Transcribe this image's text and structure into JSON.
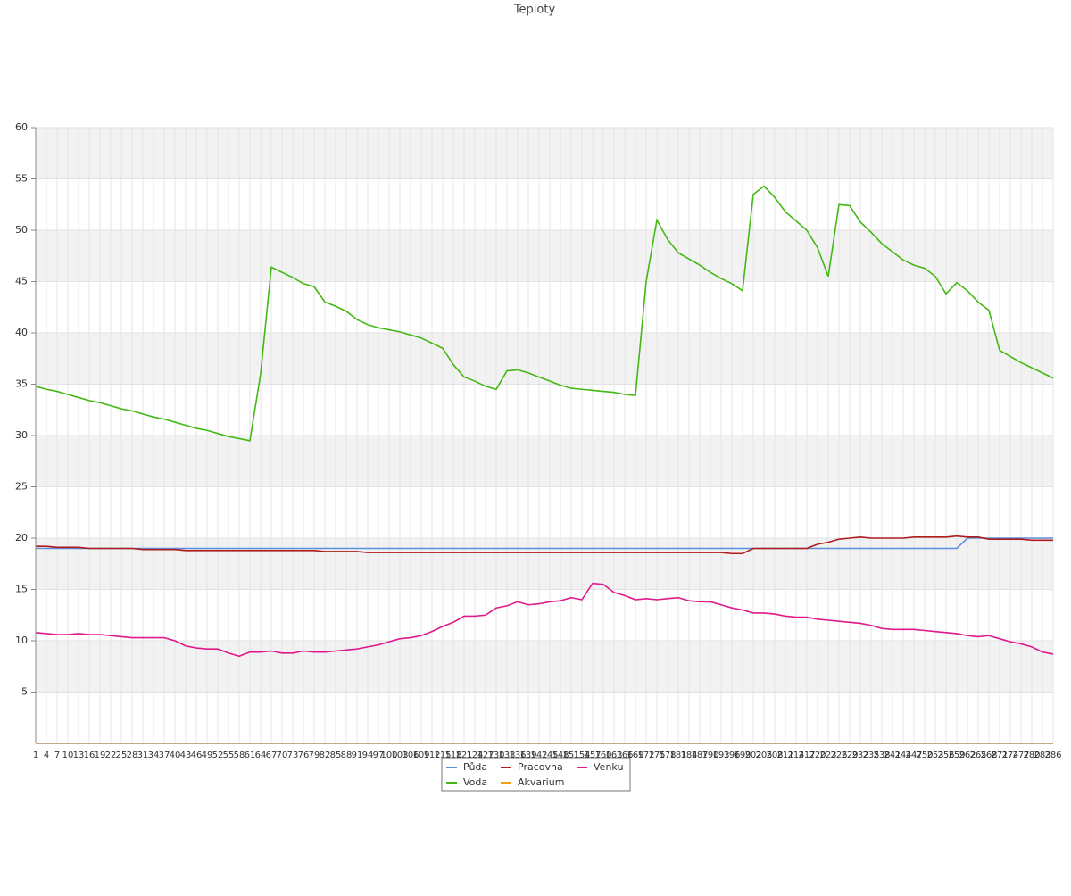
{
  "chart_data": {
    "type": "line",
    "title": "Teploty",
    "categories": [
      "1",
      "4",
      "7",
      "10",
      "13",
      "16",
      "19",
      "22",
      "25",
      "28",
      "31",
      "34",
      "37",
      "40",
      "43",
      "46",
      "49",
      "52",
      "55",
      "58",
      "61",
      "64",
      "67",
      "70",
      "73",
      "76",
      "79",
      "82",
      "85",
      "88",
      "91",
      "94",
      "97",
      "100",
      "103",
      "106",
      "109",
      "112",
      "115",
      "118",
      "121",
      "124",
      "127",
      "130",
      "133",
      "136",
      "139",
      "142",
      "145",
      "148",
      "151",
      "154",
      "157",
      "160",
      "163",
      "166",
      "169",
      "172",
      "175",
      "178",
      "181",
      "184",
      "187",
      "190",
      "193",
      "196",
      "199",
      "202",
      "205",
      "208",
      "211",
      "214",
      "217",
      "220",
      "223",
      "226",
      "229",
      "232",
      "235",
      "238",
      "241",
      "244",
      "247",
      "250",
      "253",
      "256",
      "259",
      "262",
      "265",
      "268",
      "271",
      "274",
      "277",
      "280",
      "283",
      "286"
    ],
    "series": [
      {
        "name": "Půda",
        "color": "#5b8fde",
        "values": [
          19,
          19,
          19,
          19,
          19,
          19,
          19,
          19,
          19,
          19,
          19,
          19,
          19,
          19,
          19,
          19,
          19,
          19,
          19,
          19,
          19,
          19,
          19,
          19,
          19,
          19,
          19,
          19,
          19,
          19,
          19,
          19,
          19,
          19,
          19,
          19,
          19,
          19,
          19,
          19,
          19,
          19,
          19,
          19,
          19,
          19,
          19,
          19,
          19,
          19,
          19,
          19,
          19,
          19,
          19,
          19,
          19,
          19,
          19,
          19,
          19,
          19,
          19,
          19,
          19,
          19,
          19,
          19,
          19,
          19,
          19,
          19,
          19,
          19,
          19,
          19,
          19,
          19,
          19,
          19,
          19,
          19,
          19,
          19,
          19,
          19,
          19,
          20,
          20,
          20,
          20,
          20,
          20,
          20,
          20,
          20
        ]
      },
      {
        "name": "Pracovna",
        "color": "#b01c1c",
        "values": [
          19.2,
          19.2,
          19.1,
          19.1,
          19.1,
          19.0,
          19.0,
          19.0,
          19.0,
          19.0,
          18.9,
          18.9,
          18.9,
          18.9,
          18.8,
          18.8,
          18.8,
          18.8,
          18.8,
          18.8,
          18.8,
          18.8,
          18.8,
          18.8,
          18.8,
          18.8,
          18.8,
          18.7,
          18.7,
          18.7,
          18.7,
          18.6,
          18.6,
          18.6,
          18.6,
          18.6,
          18.6,
          18.6,
          18.6,
          18.6,
          18.6,
          18.6,
          18.6,
          18.6,
          18.6,
          18.6,
          18.6,
          18.6,
          18.6,
          18.6,
          18.6,
          18.6,
          18.6,
          18.6,
          18.6,
          18.6,
          18.6,
          18.6,
          18.6,
          18.6,
          18.6,
          18.6,
          18.6,
          18.6,
          18.6,
          18.5,
          18.5,
          19.0,
          19.0,
          19.0,
          19.0,
          19.0,
          19.0,
          19.4,
          19.6,
          19.9,
          20.0,
          20.1,
          20.0,
          20.0,
          20.0,
          20.0,
          20.1,
          20.1,
          20.1,
          20.1,
          20.2,
          20.1,
          20.1,
          19.9,
          19.9,
          19.9,
          19.9,
          19.8,
          19.8,
          19.8
        ]
      },
      {
        "name": "Venku",
        "color": "#e0198c",
        "values": [
          10.8,
          10.7,
          10.6,
          10.6,
          10.7,
          10.6,
          10.6,
          10.5,
          10.4,
          10.3,
          10.3,
          10.3,
          10.3,
          10.0,
          9.5,
          9.3,
          9.2,
          9.2,
          8.8,
          8.5,
          8.9,
          8.9,
          9.0,
          8.8,
          8.8,
          9.0,
          8.9,
          8.9,
          9.0,
          9.1,
          9.2,
          9.4,
          9.6,
          9.9,
          10.2,
          10.3,
          10.5,
          10.9,
          11.4,
          11.8,
          12.4,
          12.4,
          12.5,
          13.2,
          13.4,
          13.8,
          13.5,
          13.6,
          13.8,
          13.9,
          14.2,
          14.0,
          15.6,
          15.5,
          14.7,
          14.4,
          14.0,
          14.1,
          14.0,
          14.1,
          14.2,
          13.9,
          13.8,
          13.8,
          13.5,
          13.2,
          13.0,
          12.7,
          12.7,
          12.6,
          12.4,
          12.3,
          12.3,
          12.1,
          12.0,
          11.9,
          11.8,
          11.7,
          11.5,
          11.2,
          11.1,
          11.1,
          11.1,
          11.0,
          10.9,
          10.8,
          10.7,
          10.5,
          10.4,
          10.5,
          10.2,
          9.9,
          9.7,
          9.4,
          8.9,
          8.7
        ]
      },
      {
        "name": "Voda",
        "color": "#44b814",
        "values": [
          34.8,
          34.5,
          34.3,
          34.0,
          33.7,
          33.4,
          33.2,
          32.9,
          32.6,
          32.4,
          32.1,
          31.8,
          31.6,
          31.3,
          31.0,
          30.7,
          30.5,
          30.2,
          29.9,
          29.7,
          29.5,
          36.0,
          46.4,
          45.9,
          45.4,
          44.8,
          44.5,
          43.0,
          42.6,
          42.1,
          41.3,
          40.8,
          40.5,
          40.3,
          40.1,
          39.8,
          39.5,
          39.0,
          38.5,
          36.9,
          35.7,
          35.3,
          34.8,
          34.5,
          36.3,
          36.4,
          36.1,
          35.7,
          35.3,
          34.9,
          34.6,
          34.5,
          34.4,
          34.3,
          34.2,
          34.0,
          33.9,
          45.0,
          51.0,
          49.1,
          47.8,
          47.2,
          46.6,
          45.9,
          45.3,
          44.8,
          44.1,
          53.5,
          54.3,
          53.2,
          51.8,
          50.9,
          50.0,
          48.3,
          45.5,
          52.5,
          52.4,
          50.8,
          49.8,
          48.7,
          47.9,
          47.1,
          46.6,
          46.3,
          45.5,
          43.8,
          44.9,
          44.1,
          43.0,
          42.2,
          38.3,
          37.7,
          37.1,
          36.6,
          36.1,
          35.6
        ]
      },
      {
        "name": "Akvarium",
        "color": "#f0a30a",
        "values": [
          0,
          0,
          0,
          0,
          0,
          0,
          0,
          0,
          0,
          0,
          0,
          0,
          0,
          0,
          0,
          0,
          0,
          0,
          0,
          0,
          0,
          0,
          0,
          0,
          0,
          0,
          0,
          0,
          0,
          0,
          0,
          0,
          0,
          0,
          0,
          0,
          0,
          0,
          0,
          0,
          0,
          0,
          0,
          0,
          0,
          0,
          0,
          0,
          0,
          0,
          0,
          0,
          0,
          0,
          0,
          0,
          0,
          0,
          0,
          0,
          0,
          0,
          0,
          0,
          0,
          0,
          0,
          0,
          0,
          0,
          0,
          0,
          0,
          0,
          0,
          0,
          0,
          0,
          0,
          0,
          0,
          0,
          0,
          0,
          0,
          0,
          0,
          0,
          0,
          0,
          0,
          0,
          0,
          0,
          0,
          0
        ]
      }
    ],
    "ylim": [
      0,
      60
    ],
    "yticks": [
      5,
      10,
      15,
      20,
      25,
      30,
      35,
      40,
      45,
      50,
      55,
      60
    ],
    "grid": true
  }
}
